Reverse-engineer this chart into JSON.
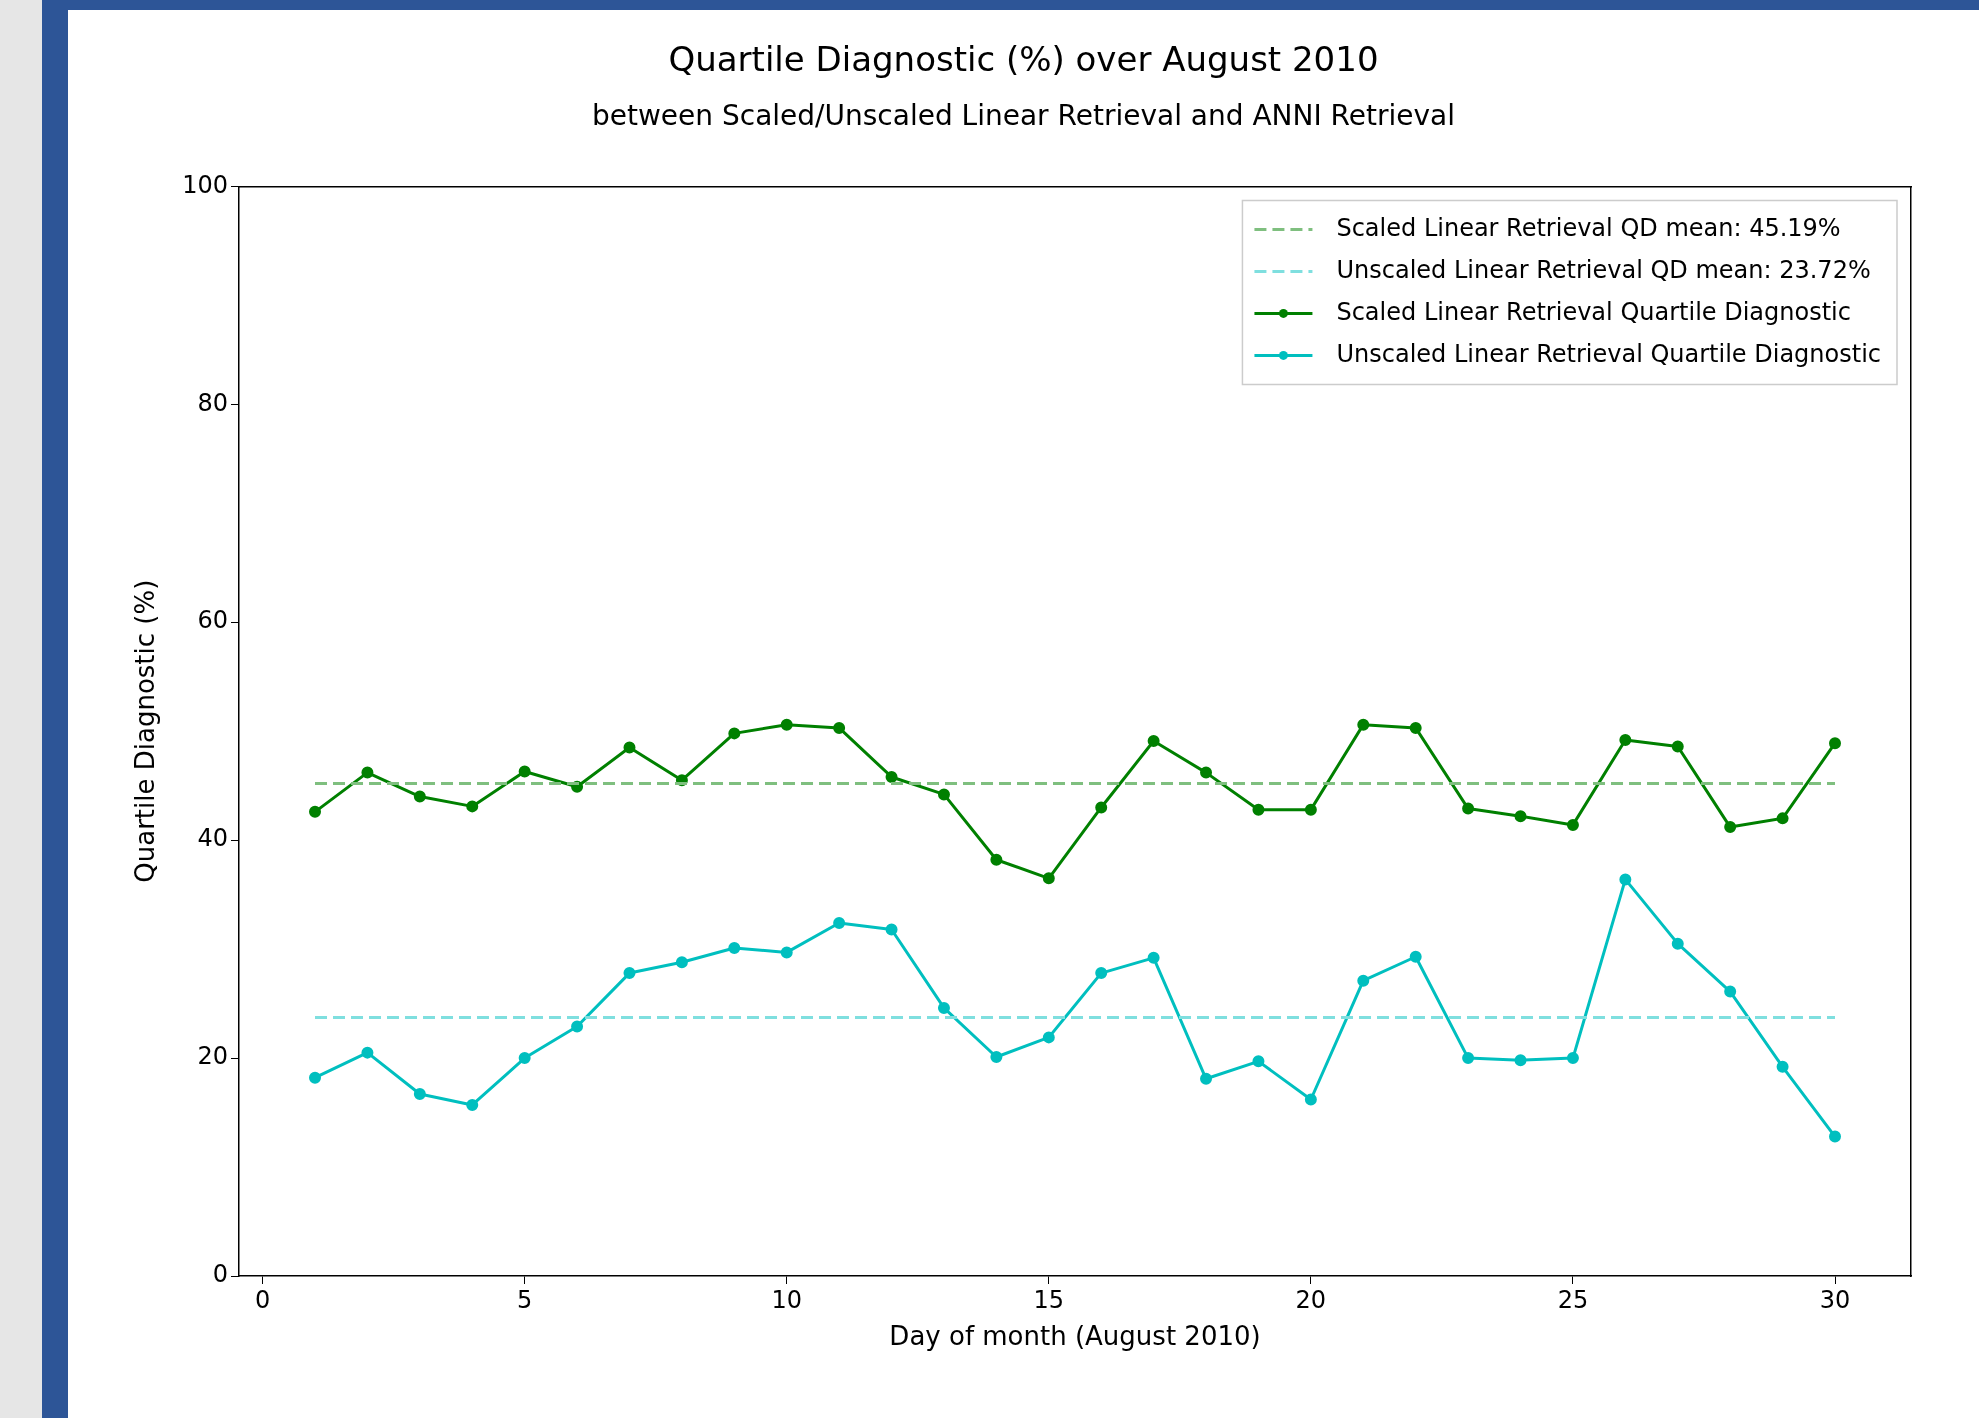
{
  "chart_data": {
    "type": "line",
    "title": "Quartile Diagnostic (%) over August 2010",
    "subtitle": "between Scaled/Unscaled Linear Retrieval and ANNI Retrieval",
    "xlabel": "Day of month (August 2010)",
    "ylabel": "Quartile Diagnostic (%)",
    "x": [
      1,
      2,
      3,
      4,
      5,
      6,
      7,
      8,
      9,
      10,
      11,
      12,
      13,
      14,
      15,
      16,
      17,
      18,
      19,
      20,
      21,
      22,
      23,
      24,
      25,
      26,
      27,
      28,
      29,
      30
    ],
    "ref_lines": [
      {
        "axis": "y",
        "value": 45.19,
        "label": "Scaled Linear Retrieval QD mean: 45.19%",
        "color": "#7fbf7f",
        "line_style": "dashed"
      },
      {
        "axis": "y",
        "value": 23.72,
        "label": "Unscaled Linear Retrieval QD mean: 23.72%",
        "color": "#7fdfdf",
        "line_style": "dashed"
      }
    ],
    "series": [
      {
        "name": "Scaled Linear Retrieval Quartile Diagnostic",
        "color": "#008000",
        "values": [
          42.6,
          46.2,
          44.0,
          43.1,
          46.3,
          44.9,
          48.5,
          45.5,
          49.8,
          50.6,
          50.3,
          45.8,
          44.2,
          38.2,
          36.5,
          43.0,
          49.1,
          46.2,
          42.8,
          42.8,
          50.6,
          50.3,
          42.9,
          42.2,
          41.4,
          49.2,
          48.6,
          41.2,
          42.0,
          48.9
        ]
      },
      {
        "name": "Unscaled Linear Retrieval Quartile Diagnostic",
        "color": "#00bfbf",
        "values": [
          18.2,
          20.5,
          16.7,
          15.7,
          20.0,
          22.9,
          27.8,
          28.8,
          30.1,
          29.7,
          32.4,
          31.8,
          24.6,
          20.1,
          21.9,
          27.8,
          29.2,
          18.1,
          19.7,
          16.2,
          27.1,
          29.3,
          20.0,
          19.8,
          20.0,
          36.4,
          30.5,
          26.1,
          19.2,
          12.8
        ]
      }
    ],
    "marker": "circle",
    "line_style": "solid",
    "xlim": [
      -0.45,
      31.45
    ],
    "ylim": [
      0,
      100
    ],
    "xticks": [
      0,
      5,
      10,
      15,
      20,
      25,
      30
    ],
    "yticks": [
      0,
      20,
      40,
      60,
      80,
      100
    ],
    "grid": false,
    "legend": "top right"
  }
}
